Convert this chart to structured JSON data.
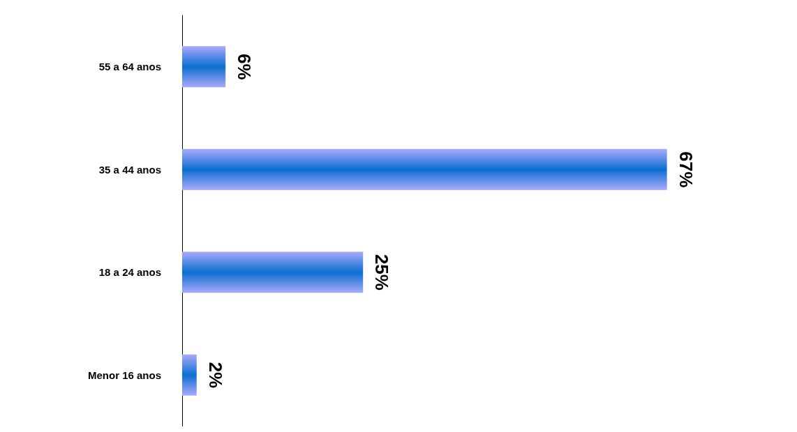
{
  "chart_data": {
    "type": "bar",
    "orientation": "horizontal",
    "categories": [
      "55 a 64 anos",
      "35 a 44 anos",
      "18 a 24 anos",
      "Menor 16 anos"
    ],
    "values": [
      6,
      67,
      25,
      2
    ],
    "value_labels": [
      "6%",
      "67%",
      "25%",
      "2%"
    ],
    "color": "#0b6fd1"
  }
}
